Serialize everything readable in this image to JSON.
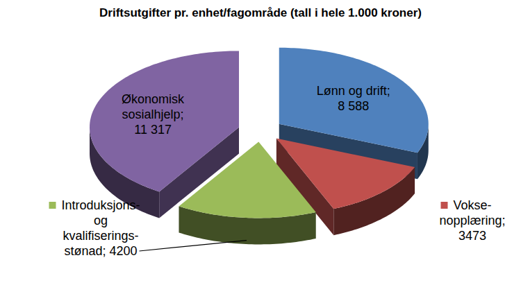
{
  "chart_data": {
    "type": "pie",
    "title": "Driftsutgifter pr. enhet/fagområde (tall i hele 1.000 kroner)",
    "categories": [
      "Lønn og drift;",
      "Vokse-nopplæring;",
      "Introduksjons- og kvalifiserings-stønad;",
      "Økonomisk sosialhjelp;"
    ],
    "values": [
      8588,
      3473,
      4200,
      11317
    ],
    "value_labels": [
      "8 588",
      "3473",
      "4200",
      "11 317"
    ],
    "colors": [
      "#4f81bd",
      "#c0504d",
      "#9bbb59",
      "#8064a2"
    ],
    "data_labels": true
  }
}
